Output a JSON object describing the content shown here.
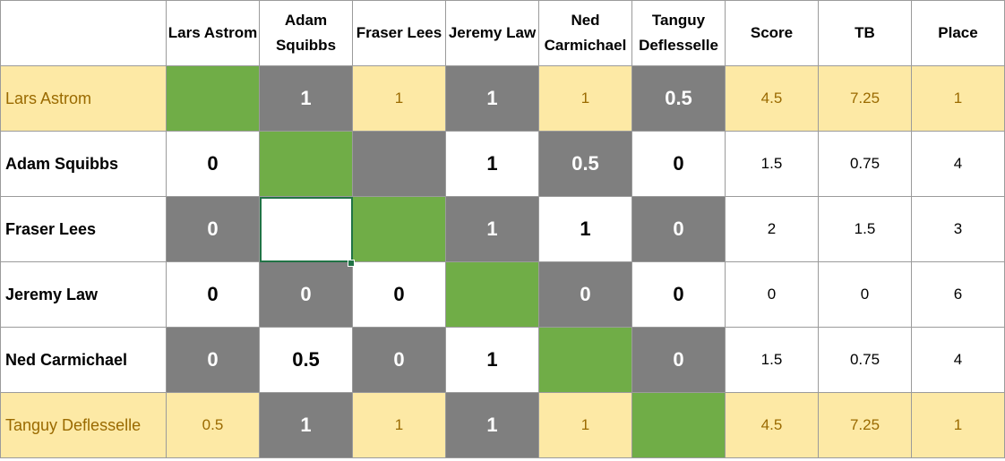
{
  "columns": [
    "Lars Astrom",
    "Adam Squibbs",
    "Fraser Lees",
    "Jeremy Law",
    "Ned Carmichael",
    "Tanguy Deflesselle"
  ],
  "stat_headers": {
    "score": "Score",
    "tb": "TB",
    "place": "Place"
  },
  "rows": [
    {
      "name": "Lars Astrom",
      "highlight": true,
      "cells": [
        {
          "v": "",
          "t": "diag"
        },
        {
          "v": "1",
          "t": "g"
        },
        {
          "v": "1",
          "t": "y"
        },
        {
          "v": "1",
          "t": "g"
        },
        {
          "v": "1",
          "t": "y"
        },
        {
          "v": "0.5",
          "t": "g"
        }
      ],
      "score": "4.5",
      "tb": "7.25",
      "place": "1"
    },
    {
      "name": "Adam Squibbs",
      "highlight": false,
      "cells": [
        {
          "v": "0",
          "t": "w"
        },
        {
          "v": "",
          "t": "diag"
        },
        {
          "v": "",
          "t": "g"
        },
        {
          "v": "1",
          "t": "w"
        },
        {
          "v": "0.5",
          "t": "g"
        },
        {
          "v": "0",
          "t": "w"
        }
      ],
      "score": "1.5",
      "tb": "0.75",
      "place": "4"
    },
    {
      "name": "Fraser Lees",
      "highlight": false,
      "cells": [
        {
          "v": "0",
          "t": "g"
        },
        {
          "v": "",
          "t": "sel"
        },
        {
          "v": "",
          "t": "diag"
        },
        {
          "v": "1",
          "t": "g"
        },
        {
          "v": "1",
          "t": "w"
        },
        {
          "v": "0",
          "t": "g"
        }
      ],
      "score": "2",
      "tb": "1.5",
      "place": "3"
    },
    {
      "name": "Jeremy Law",
      "highlight": false,
      "cells": [
        {
          "v": "0",
          "t": "w"
        },
        {
          "v": "0",
          "t": "g"
        },
        {
          "v": "0",
          "t": "w"
        },
        {
          "v": "",
          "t": "diag"
        },
        {
          "v": "0",
          "t": "g"
        },
        {
          "v": "0",
          "t": "w"
        }
      ],
      "score": "0",
      "tb": "0",
      "place": "6"
    },
    {
      "name": "Ned Carmichael",
      "highlight": false,
      "cells": [
        {
          "v": "0",
          "t": "g"
        },
        {
          "v": "0.5",
          "t": "w"
        },
        {
          "v": "0",
          "t": "g"
        },
        {
          "v": "1",
          "t": "w"
        },
        {
          "v": "",
          "t": "diag"
        },
        {
          "v": "0",
          "t": "g"
        }
      ],
      "score": "1.5",
      "tb": "0.75",
      "place": "4"
    },
    {
      "name": "Tanguy Deflesselle",
      "highlight": true,
      "cells": [
        {
          "v": "0.5",
          "t": "y"
        },
        {
          "v": "1",
          "t": "g"
        },
        {
          "v": "1",
          "t": "y"
        },
        {
          "v": "1",
          "t": "g"
        },
        {
          "v": "1",
          "t": "y"
        },
        {
          "v": "",
          "t": "diag"
        }
      ],
      "score": "4.5",
      "tb": "7.25",
      "place": "1"
    }
  ],
  "colors": {
    "diagonal": "#70ad47",
    "gray_cell": "#7f7f7f",
    "highlight_row": "#fde9a5",
    "highlight_text": "#9a6a00",
    "selection": "#217346"
  }
}
